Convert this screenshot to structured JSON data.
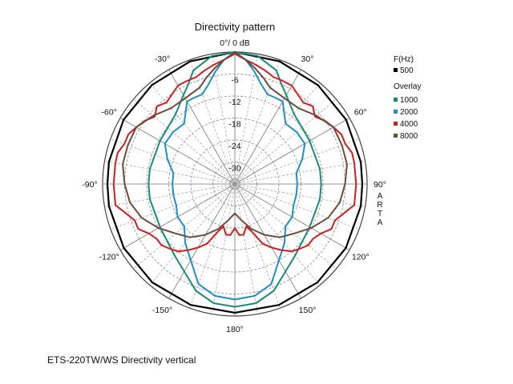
{
  "chart_data": {
    "type": "polar-line",
    "title": "Directivity pattern",
    "radial_unit_label": "0°/ 0 dB",
    "ring_values_db": [
      -6,
      -12,
      -18,
      -24,
      -30
    ],
    "r_min_db": -36,
    "r_max_db": 0,
    "angle_labels": [
      "30°",
      "60°",
      "90°",
      "120°",
      "150°",
      "180°",
      "-150°",
      "-120°",
      "-90°",
      "-60°",
      "-30°"
    ],
    "legend": {
      "header": "F(Hz)",
      "overlay_header": "Overlay",
      "placement": "right"
    },
    "watermark": "ARTA",
    "series": [
      {
        "name": "500",
        "color": "#000000",
        "angles": [
          0,
          20,
          40,
          60,
          80,
          90,
          100,
          120,
          140,
          160,
          180
        ],
        "values": [
          0,
          -0.4,
          -0.8,
          -1.0,
          -1.2,
          -1.3,
          -1.2,
          -1.1,
          -1.0,
          -0.9,
          -0.9
        ]
      },
      {
        "name": "1000",
        "color": "#1a8a7a",
        "angles": [
          0,
          10,
          20,
          25,
          30,
          40,
          60,
          80,
          90,
          100,
          120,
          140,
          160,
          170,
          180
        ],
        "values": [
          0,
          -0.5,
          -3,
          -6,
          -8,
          -11,
          -12.5,
          -12.5,
          -12.5,
          -12.5,
          -12.5,
          -10.5,
          -5,
          -3,
          -2.5
        ]
      },
      {
        "name": "2000",
        "color": "#1f8fc6",
        "angles": [
          0,
          5,
          10,
          15,
          20,
          25,
          30,
          40,
          50,
          60,
          70,
          80,
          90,
          100,
          110,
          120,
          130,
          140,
          150,
          160,
          170,
          180
        ],
        "values": [
          0,
          -2,
          -5,
          -8,
          -10,
          -10,
          -10,
          -14.5,
          -14,
          -14,
          -16.5,
          -19,
          -19,
          -19,
          -19,
          -18,
          -18,
          -15,
          -12,
          -7,
          -5,
          -4.5
        ]
      },
      {
        "name": "4000",
        "color": "#cc1f1f",
        "angles": [
          0,
          5,
          10,
          15,
          20,
          25,
          30,
          40,
          45,
          50,
          55,
          60,
          65,
          70,
          75,
          80,
          90,
          100,
          110,
          115,
          120,
          125,
          130,
          135,
          140,
          145,
          150,
          155,
          160,
          165,
          170,
          175,
          180
        ],
        "values": [
          -0.5,
          -2,
          -3,
          -4,
          -5,
          -5,
          -5,
          -7,
          -6,
          -7.5,
          -6,
          -5,
          -4,
          -4,
          -3,
          -3,
          -3,
          -3,
          -7,
          -7,
          -9,
          -10,
          -10,
          -11,
          -12,
          -14,
          -16,
          -18,
          -22,
          -24,
          -22,
          -22,
          -24
        ]
      },
      {
        "name": "8000",
        "color": "#6e4b3a",
        "angles": [
          0,
          5,
          10,
          15,
          20,
          30,
          40,
          50,
          60,
          70,
          80,
          90,
          100,
          110,
          120,
          130,
          140,
          150,
          160,
          170,
          180
        ],
        "values": [
          0,
          -2,
          -4,
          -6,
          -8,
          -9,
          -9,
          -7,
          -5,
          -5,
          -5,
          -6,
          -7,
          -9,
          -12,
          -15,
          -17,
          -20,
          -23,
          -26,
          -28
        ]
      }
    ]
  },
  "caption": "ETS-220TW/WS  Directivity vertical"
}
